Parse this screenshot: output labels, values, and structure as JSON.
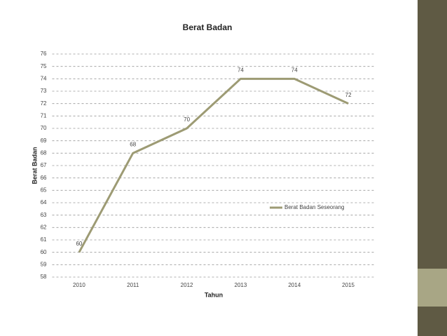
{
  "chart_data": {
    "type": "line",
    "title": "Berat Badan",
    "x_label": "Tahun",
    "y_label": "Berat Badan",
    "categories": [
      "2010",
      "2011",
      "2012",
      "2013",
      "2014",
      "2015"
    ],
    "series": [
      {
        "name": "Berat Badan Seseorang",
        "color": "#9d9b74",
        "values": [
          60,
          68,
          70,
          74,
          74,
          72
        ]
      }
    ],
    "ylim": [
      58,
      76
    ],
    "yticks": [
      58,
      59,
      60,
      61,
      62,
      63,
      64,
      65,
      66,
      67,
      68,
      69,
      70,
      71,
      72,
      73,
      74,
      75,
      76
    ],
    "grid": true,
    "legend": "right"
  }
}
